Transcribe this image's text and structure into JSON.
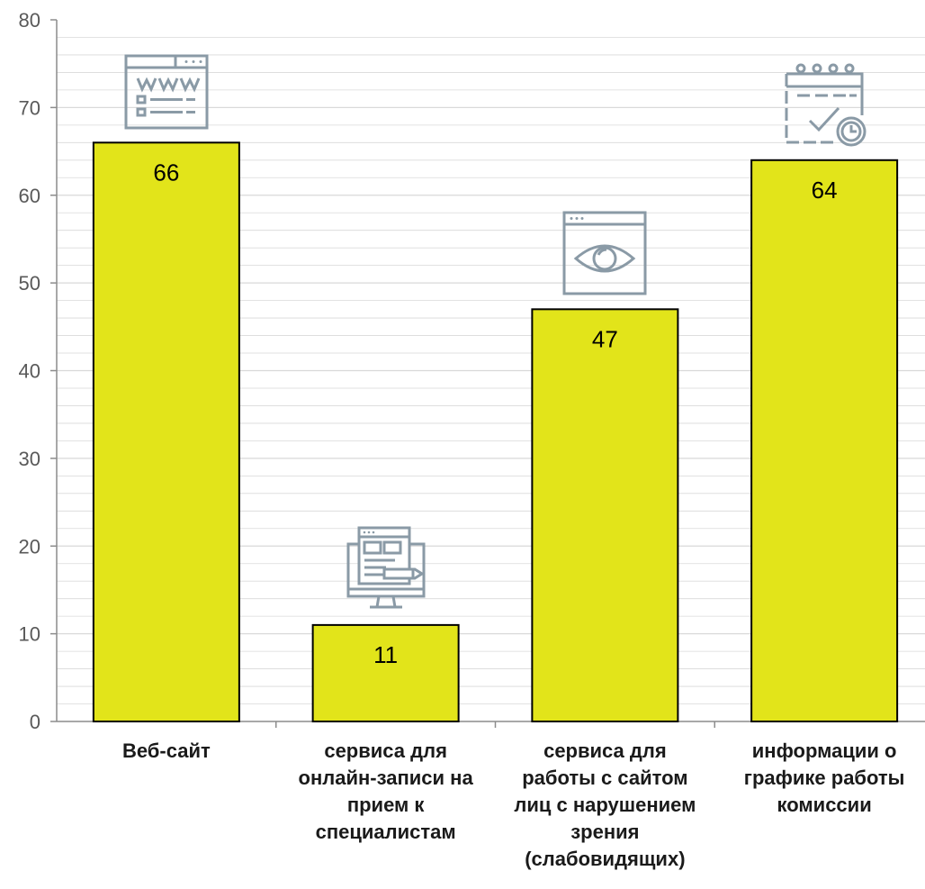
{
  "chart_data": {
    "type": "bar",
    "categories": [
      "Веб-сайт",
      "сервиса для\nонлайн-записи на\nприем к\nспециалистам",
      "сервиса для\nработы с сайтом\nлиц с нарушением\nзрения\n(слабовидящих)",
      "информации о\nграфике работы\nкомиссии"
    ],
    "values": [
      66,
      11,
      47,
      64
    ],
    "data_labels": [
      "66",
      "11",
      "47",
      "64"
    ],
    "ylim": [
      0,
      80
    ],
    "yticks": [
      "0",
      "10",
      "20",
      "30",
      "40",
      "50",
      "60",
      "70",
      "80"
    ],
    "grid": true,
    "legend": "none",
    "bar_color": "#e2e41a",
    "bar_edge_color": "#000000",
    "grid_color": "#d9d9d9",
    "axis_color": "#8c8c8c",
    "icons": [
      "website-www-icon",
      "online-booking-computer-icon",
      "eye-browser-icon",
      "calendar-check-clock-icon"
    ]
  }
}
